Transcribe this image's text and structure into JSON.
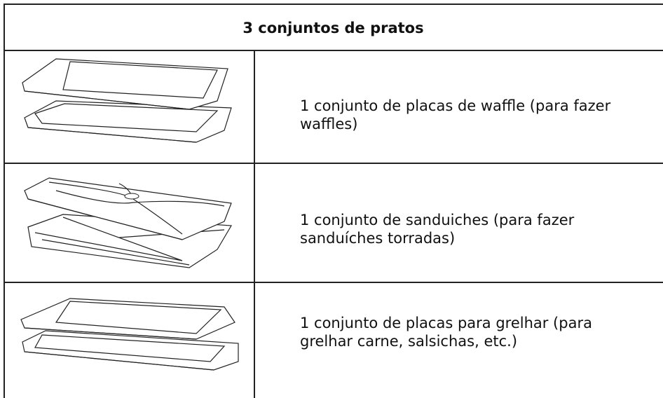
{
  "table": {
    "header": "3 conjuntos de pratos",
    "rows": [
      [
        "1 conjunto de placas de waffle (para fazer waffles)"
      ],
      [
        "1 conjunto de sanduiches (para fazer sanduíches torradas)"
      ],
      [
        "1 conjunto de placas para grelhar (para grelhar carne, salsichas, etc.)"
      ]
    ]
  }
}
